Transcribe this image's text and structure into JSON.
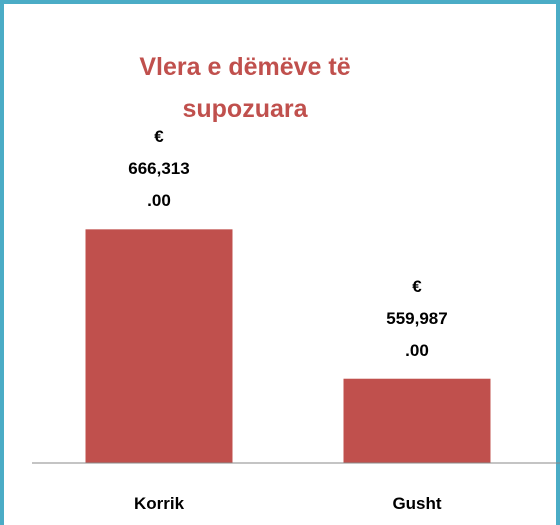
{
  "chart_data": {
    "type": "bar",
    "title": "Vlera e dëmëve të supozuara",
    "categories": [
      "Korrik",
      "Gusht"
    ],
    "values": [
      666313,
      559987
    ],
    "value_labels": [
      "€\n666,313\n.00",
      "€\n559,987\n.00"
    ],
    "color": "#c0504d",
    "ylim": [
      500000,
      700000
    ]
  }
}
